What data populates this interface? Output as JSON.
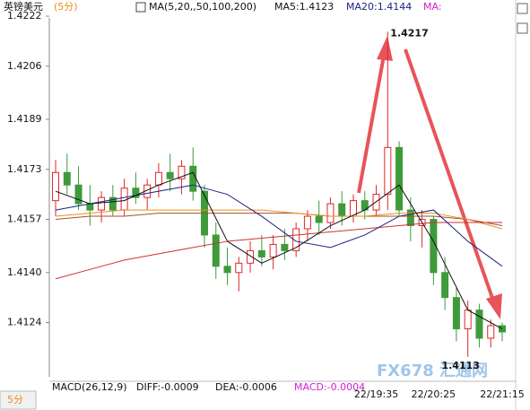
{
  "chart_data": {
    "type": "candlestick",
    "title": "英镑美元",
    "subtitle": "(5分)",
    "indicator_labels": [
      "MA(5,20,,50,100,200)",
      "MA5:1.4123",
      "MA20:1.4144",
      "MA:"
    ],
    "macd_labels": [
      "MACD(26,12,9)",
      "DIFF:-0.0009",
      "DEA:-0.0006",
      "MACD:-0.0004"
    ],
    "annotations": [
      "1.4217",
      "1.4113"
    ],
    "period_tab": "5分",
    "watermark": "FX678 汇通网",
    "up_color": "#e0262b",
    "down_color": "#3e9b3a",
    "categories": [
      null,
      null,
      null,
      null,
      null,
      null,
      null,
      null,
      null,
      null,
      null,
      null,
      null,
      null,
      null,
      null,
      null,
      null,
      null,
      null,
      null,
      null,
      null,
      null,
      null,
      null,
      null,
      null,
      "22/19:35",
      null,
      null,
      null,
      null,
      "22/20:25",
      null,
      null,
      null,
      null,
      null,
      "22/21:15"
    ],
    "open": [
      1.4163,
      1.4172,
      1.4168,
      1.4162,
      1.416,
      1.4164,
      1.416,
      1.4167,
      1.4164,
      1.4168,
      1.4172,
      1.417,
      1.4174,
      1.4166,
      1.4152,
      1.4142,
      1.414,
      1.4143,
      1.4147,
      1.4145,
      1.4149,
      1.4147,
      1.4154,
      1.4158,
      1.4156,
      1.4162,
      1.4158,
      1.4163,
      1.416,
      1.4165,
      1.418,
      1.416,
      1.4155,
      1.4157,
      1.414,
      1.4132,
      1.4122,
      1.4128,
      1.4119,
      1.4123
    ],
    "high": [
      1.4176,
      1.4178,
      1.4174,
      1.4168,
      1.4166,
      1.4168,
      1.417,
      1.4172,
      1.417,
      1.4175,
      1.4178,
      1.4176,
      1.418,
      1.4168,
      1.4156,
      1.4148,
      1.4145,
      1.415,
      1.4152,
      1.4152,
      1.4154,
      1.4156,
      1.416,
      1.4163,
      1.4164,
      1.4166,
      1.4165,
      1.4166,
      1.4168,
      1.4217,
      1.4182,
      1.4164,
      1.416,
      1.4158,
      1.4145,
      1.4135,
      1.4131,
      1.413,
      1.4125,
      1.4124
    ],
    "low": [
      1.4158,
      1.4165,
      1.416,
      1.4155,
      1.4156,
      1.4158,
      1.4158,
      1.4162,
      1.416,
      1.4164,
      1.4166,
      1.4165,
      1.4163,
      1.4148,
      1.4138,
      1.4136,
      1.4134,
      1.414,
      1.4142,
      1.4141,
      1.4144,
      1.4145,
      1.415,
      1.4152,
      1.4154,
      1.4155,
      1.4156,
      1.4157,
      1.4158,
      1.416,
      1.4158,
      1.415,
      1.4148,
      1.4136,
      1.4128,
      1.4118,
      1.4113,
      1.4116,
      1.4116,
      1.4118
    ],
    "close": [
      1.4172,
      1.4168,
      1.4162,
      1.416,
      1.4164,
      1.416,
      1.4167,
      1.4164,
      1.4168,
      1.4172,
      1.417,
      1.4174,
      1.4166,
      1.4152,
      1.4142,
      1.414,
      1.4143,
      1.4147,
      1.4145,
      1.4149,
      1.4147,
      1.4154,
      1.4158,
      1.4156,
      1.4162,
      1.4158,
      1.4163,
      1.416,
      1.4165,
      1.418,
      1.416,
      1.4155,
      1.4157,
      1.414,
      1.4132,
      1.4122,
      1.4128,
      1.4119,
      1.4123,
      1.4121
    ],
    "x": [
      0,
      3,
      6,
      9,
      12,
      15,
      18,
      21,
      24,
      27,
      30,
      33,
      36,
      39
    ],
    "series": [
      {
        "color": "#a0522d",
        "values": [
          1.4157,
          1.4158,
          1.4158,
          1.4159,
          1.4159,
          1.4159,
          1.4159,
          1.4159,
          1.4158,
          1.4158,
          1.4158,
          1.4158,
          1.4157,
          1.4155
        ]
      },
      {
        "color": "#e8901e",
        "values": [
          1.4158,
          1.4159,
          1.416,
          1.416,
          1.416,
          1.416,
          1.416,
          1.4159,
          1.4158,
          1.4158,
          1.4159,
          1.4159,
          1.4157,
          1.4154
        ]
      },
      {
        "color": "#cc3333",
        "values": [
          1.4138,
          1.4141,
          1.4144,
          1.4146,
          1.4148,
          1.415,
          1.4151,
          1.4152,
          1.4153,
          1.4154,
          1.4155,
          1.4156,
          1.4156,
          1.4156
        ]
      },
      {
        "color": "#1a237e",
        "values": [
          1.416,
          1.4162,
          1.4164,
          1.4166,
          1.4168,
          1.4165,
          1.4158,
          1.415,
          1.4148,
          1.4152,
          1.4158,
          1.416,
          1.415,
          1.4142
        ]
      },
      {
        "color": "#111111",
        "values": [
          1.4166,
          1.4162,
          1.4163,
          1.4168,
          1.4172,
          1.415,
          1.4143,
          1.4148,
          1.4155,
          1.416,
          1.4168,
          1.415,
          1.4128,
          1.4122
        ]
      }
    ],
    "ylim": [
      1.4107,
      1.4222
    ],
    "yticks": [
      1.4222,
      1.4206,
      1.4189,
      1.4173,
      1.4157,
      {
        "value": 1.414,
        "label": "1.4140"
      },
      1.4124
    ]
  }
}
